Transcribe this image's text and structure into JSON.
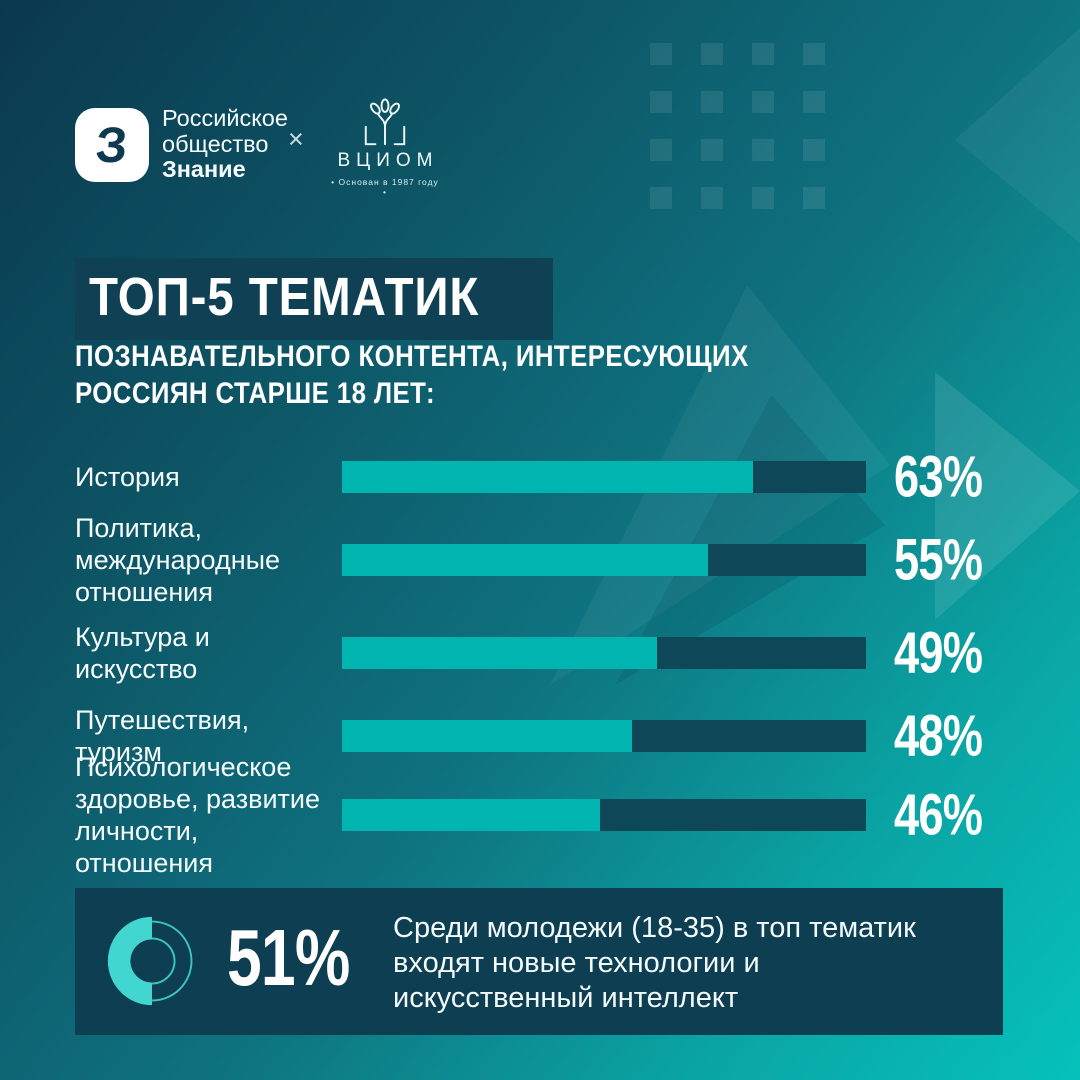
{
  "header": {
    "znanie": {
      "icon": "znanie-z-icon",
      "glyph": "З",
      "name_lines": "Российское\nобщество",
      "name_bold": "Знание"
    },
    "separator": "×",
    "vciom": {
      "icon": "vciom-tree-icon",
      "wordmark": "ВЦИОМ",
      "tagline": "• Основан в 1987 году •"
    }
  },
  "chart_data": {
    "type": "bar",
    "orientation": "horizontal",
    "title": "ТОП-5 ТЕМАТИК",
    "subtitle": "ПОЗНАВАТЕЛЬНОГО КОНТЕНТА, ИНТЕРЕСУЮЩИХ\nРОССИЯН СТАРШЕ 18 ЛЕТ:",
    "unit": "%",
    "categories": [
      "История",
      "Политика,\nмеждународные\nотношения",
      "Культура и искусство",
      "Путешествия, туризм",
      "Психологическое\nздоровье, развитие\nличности, отношения"
    ],
    "values": [
      63,
      55,
      49,
      48,
      46
    ],
    "value_labels": [
      "63%",
      "55%",
      "49%",
      "48%",
      "46%"
    ],
    "bar_fill_ratios": [
      0.785,
      0.698,
      0.601,
      0.553,
      0.492
    ],
    "xlim": [
      0,
      80
    ],
    "grid": false,
    "legend": false,
    "colors": {
      "bar_fill": "#00b4b0",
      "bar_track": "#0e4758",
      "value_text": "#ffffff"
    }
  },
  "callout": {
    "icon": "donut-chart-icon",
    "donut_percent": 51,
    "percent_label": "51%",
    "text": "Среди молодежи (18-35) в топ тематик входят новые технологии и искусственный интеллект"
  },
  "palette": {
    "background_dark": "#0b384e",
    "background_bright": "#06c1bb",
    "panel": "#0d3e52",
    "title_box": "#0f4054",
    "donut_accent": "#41d6cf",
    "text": "#ffffff"
  }
}
